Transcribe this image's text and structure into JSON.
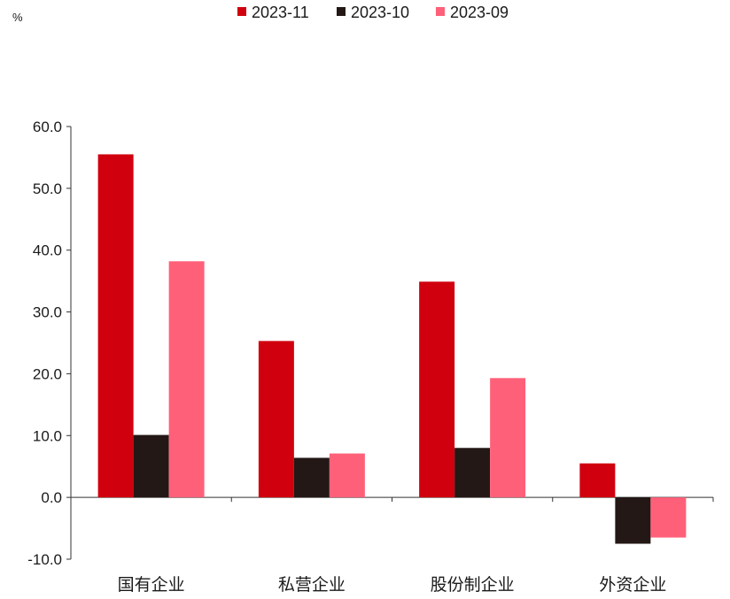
{
  "chart_data": {
    "type": "bar",
    "unit": "%",
    "categories": [
      "国有企业",
      "私营企业",
      "股份制企业",
      "外资企业"
    ],
    "series": [
      {
        "name": "2023-11",
        "color": "#d0000e",
        "values": [
          55.5,
          25.3,
          34.9,
          5.5
        ]
      },
      {
        "name": "2023-10",
        "color": "#231815",
        "values": [
          10.1,
          6.4,
          8.0,
          -7.5
        ]
      },
      {
        "name": "2023-09",
        "color": "#ff6079",
        "values": [
          38.2,
          7.1,
          19.3,
          -6.5
        ]
      }
    ],
    "ylim": [
      -10,
      60
    ],
    "yticks": [
      "60.0",
      "50.0",
      "40.0",
      "30.0",
      "20.0",
      "10.0",
      "0.0",
      "-10.0"
    ],
    "legend_position": "top",
    "grid": false
  }
}
